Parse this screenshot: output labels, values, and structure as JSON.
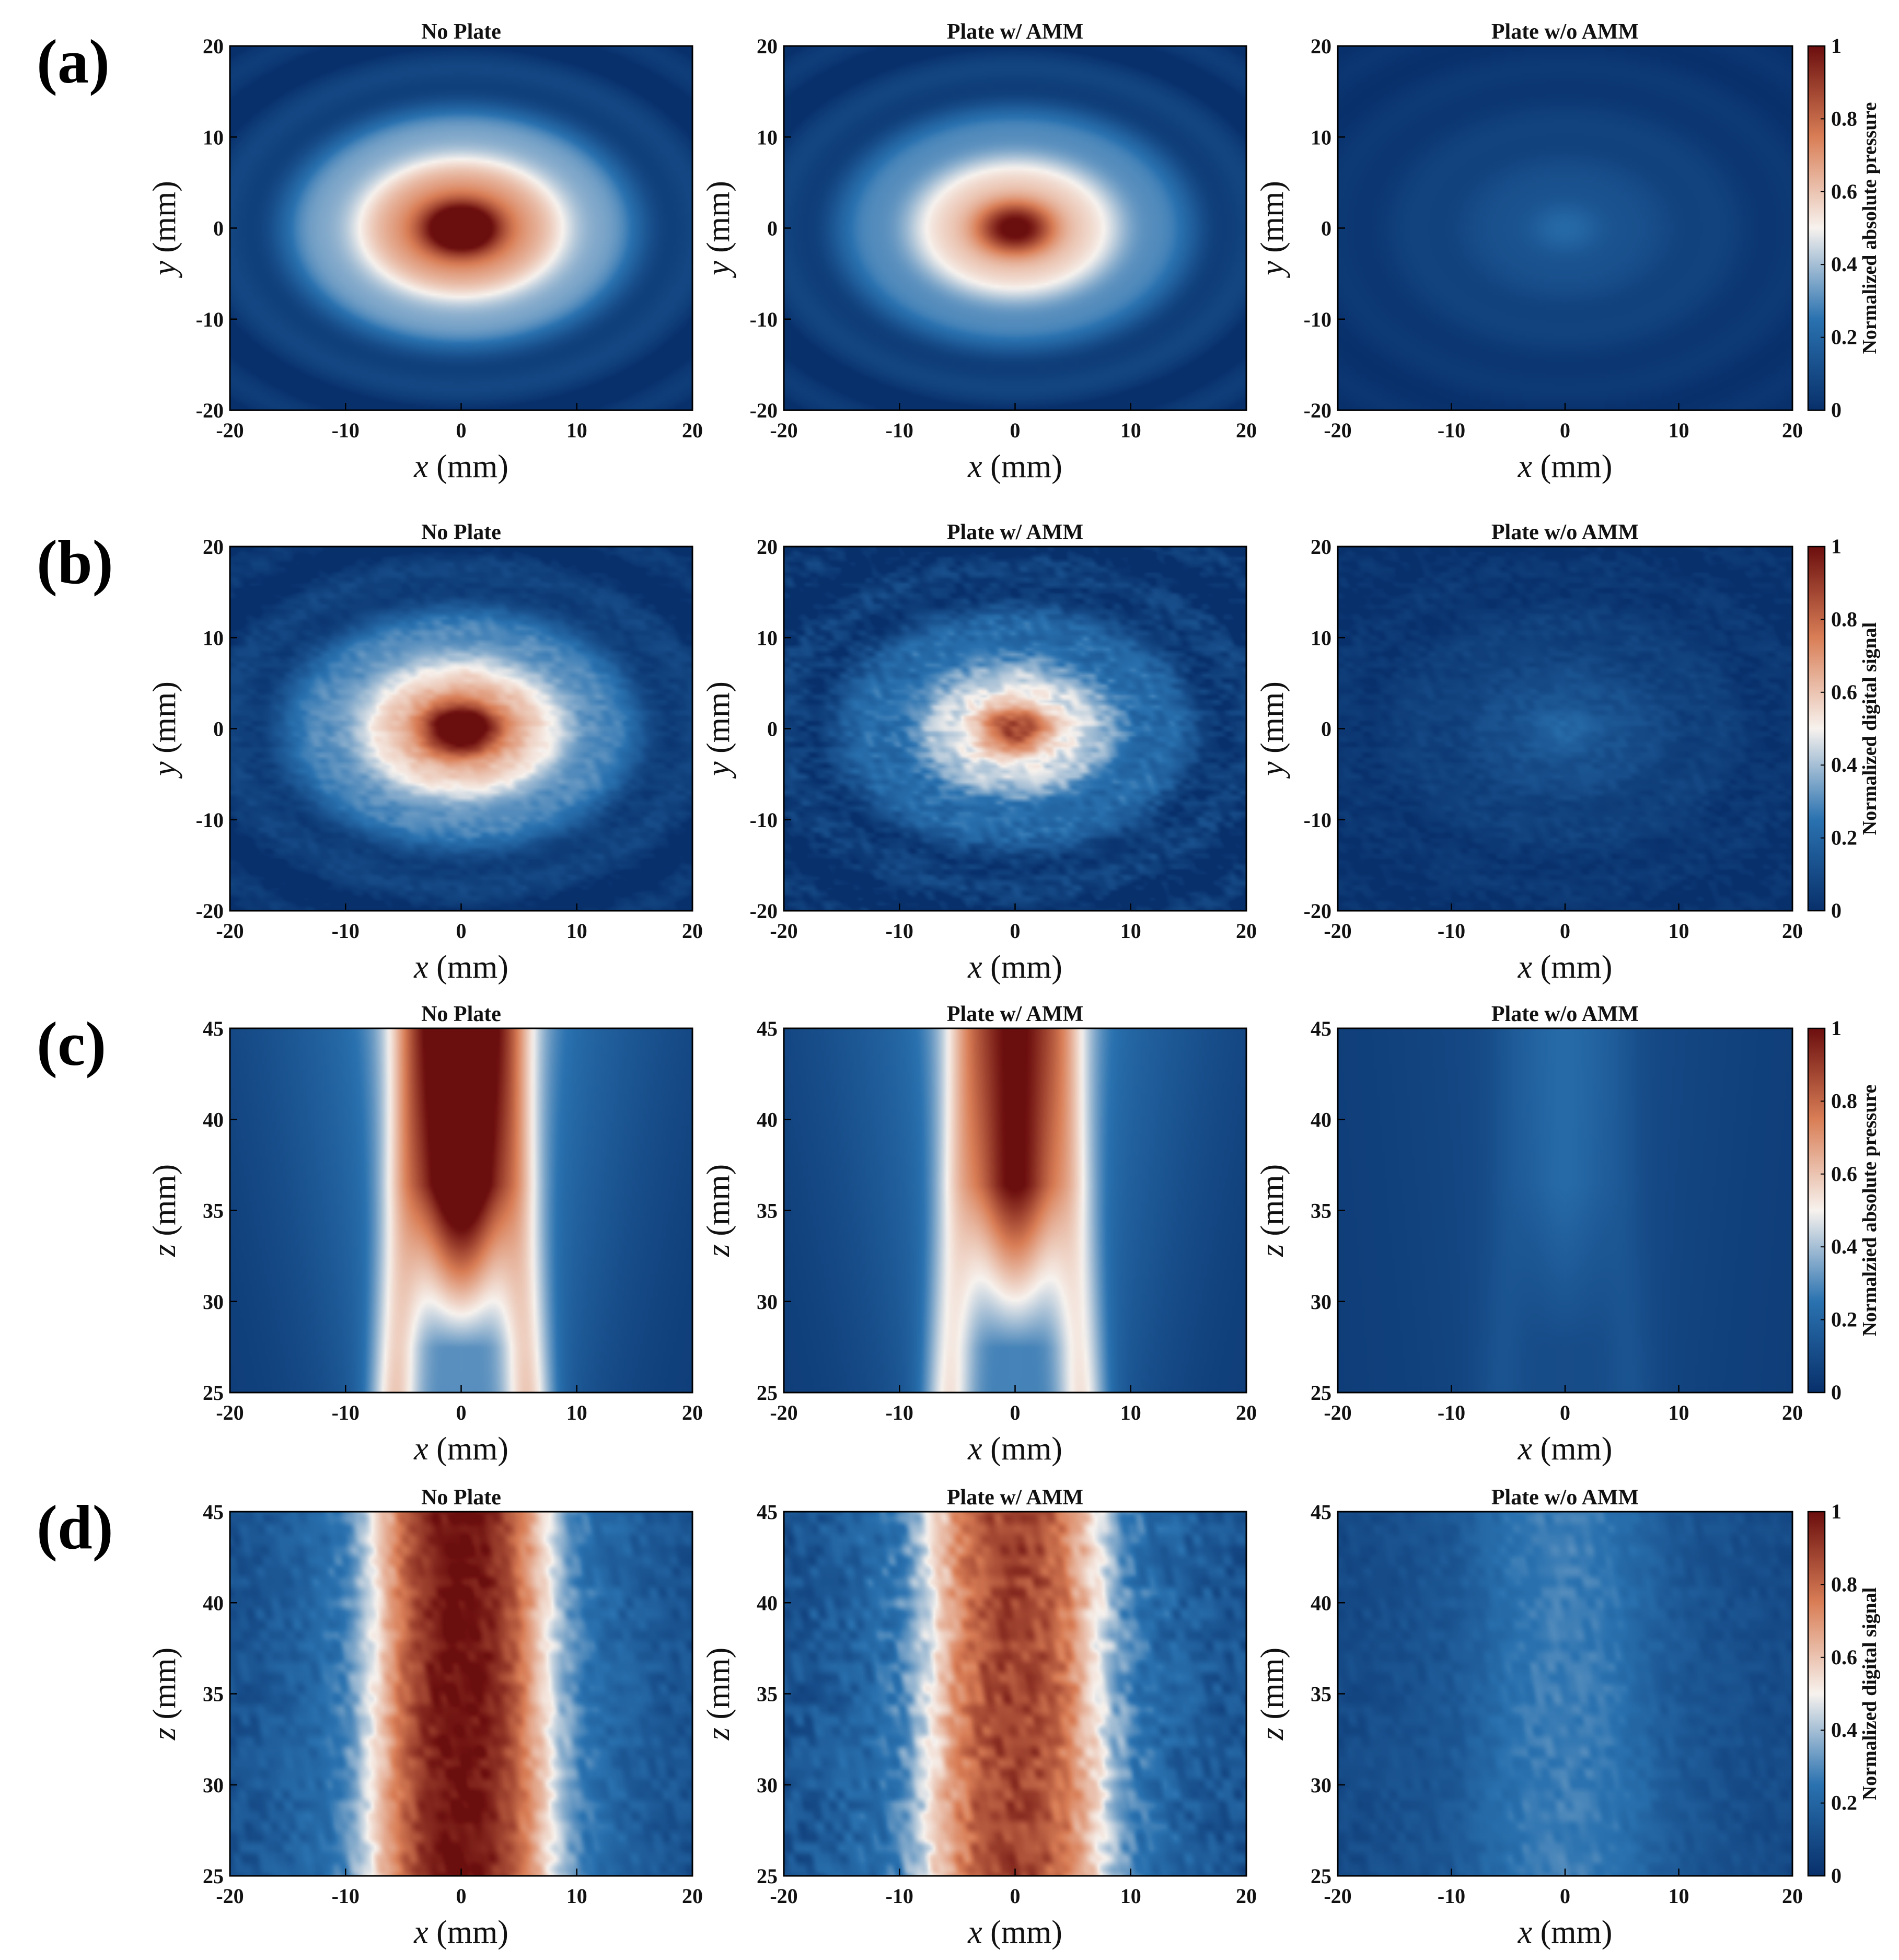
{
  "colors": {
    "low": "#08306b",
    "mid_low": "#2a72b0",
    "mid": "#f7f2ee",
    "mid_high": "#d97e56",
    "high": "#6b0e0e"
  },
  "colorbar_ticks": [
    "0",
    "0.2",
    "0.4",
    "0.6",
    "0.8",
    "1"
  ],
  "chart_data": [
    {
      "id": "a",
      "row_label": "(a)",
      "type": "heatmap",
      "colorbar_label": "Normalized absolute pressure",
      "panels": [
        {
          "title": "No Plate",
          "xlabel_var": "x",
          "xlabel_unit": "(mm)",
          "ylabel_var": "y",
          "ylabel_unit": "(mm)",
          "x_ticks": [
            "-20",
            "-10",
            "0",
            "10",
            "20"
          ],
          "y_ticks": [
            "20",
            "10",
            "0",
            "-10",
            "-20"
          ],
          "xlim": [
            -20,
            20
          ],
          "ylim": [
            -20,
            20
          ],
          "pattern": "xy",
          "peak": 1.0,
          "ring": 0.5,
          "noise": 0
        },
        {
          "title": "Plate w/ AMM",
          "xlabel_var": "x",
          "xlabel_unit": "(mm)",
          "ylabel_var": "y",
          "ylabel_unit": "(mm)",
          "x_ticks": [
            "-20",
            "-10",
            "0",
            "10",
            "20"
          ],
          "y_ticks": [
            "20",
            "10",
            "0",
            "-10",
            "-20"
          ],
          "xlim": [
            -20,
            20
          ],
          "ylim": [
            -20,
            20
          ],
          "pattern": "xy",
          "peak": 0.82,
          "ring": 0.42,
          "noise": 0
        },
        {
          "title": "Plate w/o AMM",
          "xlabel_var": "x",
          "xlabel_unit": "(mm)",
          "ylabel_var": "y",
          "ylabel_unit": "(mm)",
          "x_ticks": [
            "-20",
            "-10",
            "0",
            "10",
            "20"
          ],
          "y_ticks": [
            "20",
            "10",
            "0",
            "-10",
            "-20"
          ],
          "xlim": [
            -20,
            20
          ],
          "ylim": [
            -20,
            20
          ],
          "pattern": "xy",
          "peak": 0.14,
          "ring": 0.06,
          "noise": 0
        }
      ]
    },
    {
      "id": "b",
      "row_label": "(b)",
      "type": "heatmap",
      "colorbar_label": "Normalized digital signal",
      "panels": [
        {
          "title": "No Plate",
          "xlabel_var": "x",
          "xlabel_unit": "(mm)",
          "ylabel_var": "y",
          "ylabel_unit": "(mm)",
          "x_ticks": [
            "-20",
            "-10",
            "0",
            "10",
            "20"
          ],
          "y_ticks": [
            "20",
            "10",
            "0",
            "-10",
            "-20"
          ],
          "xlim": [
            -20,
            20
          ],
          "ylim": [
            -20,
            20
          ],
          "pattern": "xy",
          "peak": 0.95,
          "ring": 0.42,
          "noise": 0.03
        },
        {
          "title": "Plate w/ AMM",
          "xlabel_var": "x",
          "xlabel_unit": "(mm)",
          "ylabel_var": "y",
          "ylabel_unit": "(mm)",
          "x_ticks": [
            "-20",
            "-10",
            "0",
            "10",
            "20"
          ],
          "y_ticks": [
            "20",
            "10",
            "0",
            "-10",
            "-20"
          ],
          "xlim": [
            -20,
            20
          ],
          "ylim": [
            -20,
            20
          ],
          "pattern": "xy",
          "peak": 0.72,
          "ring": 0.3,
          "noise": 0.06
        },
        {
          "title": "Plate w/o AMM",
          "xlabel_var": "x",
          "xlabel_unit": "(mm)",
          "ylabel_var": "y",
          "ylabel_unit": "(mm)",
          "x_ticks": [
            "-20",
            "-10",
            "0",
            "10",
            "20"
          ],
          "y_ticks": [
            "20",
            "10",
            "0",
            "-10",
            "-20"
          ],
          "xlim": [
            -20,
            20
          ],
          "ylim": [
            -20,
            20
          ],
          "pattern": "xy",
          "peak": 0.14,
          "ring": 0.05,
          "noise": 0.03
        }
      ]
    },
    {
      "id": "c",
      "row_label": "(c)",
      "type": "heatmap",
      "colorbar_label": "Normalzied absolute pressure",
      "panels": [
        {
          "title": "No Plate",
          "xlabel_var": "x",
          "xlabel_unit": "(mm)",
          "ylabel_var": "z",
          "ylabel_unit": "(mm)",
          "x_ticks": [
            "-20",
            "-10",
            "0",
            "10",
            "20"
          ],
          "y_ticks": [
            "45",
            "40",
            "35",
            "30",
            "25"
          ],
          "xlim": [
            -20,
            20
          ],
          "ylim": [
            25,
            45
          ],
          "pattern": "xz",
          "peak": 1.0,
          "ring": 0.65,
          "noise": 0
        },
        {
          "title": "Plate w/ AMM",
          "xlabel_var": "x",
          "xlabel_unit": "(mm)",
          "ylabel_var": "z",
          "ylabel_unit": "(mm)",
          "x_ticks": [
            "-20",
            "-10",
            "0",
            "10",
            "20"
          ],
          "y_ticks": [
            "45",
            "40",
            "35",
            "30",
            "25"
          ],
          "xlim": [
            -20,
            20
          ],
          "ylim": [
            25,
            45
          ],
          "pattern": "xz",
          "peak": 0.78,
          "ring": 0.58,
          "noise": 0
        },
        {
          "title": "Plate w/o AMM",
          "xlabel_var": "x",
          "xlabel_unit": "(mm)",
          "ylabel_var": "z",
          "ylabel_unit": "(mm)",
          "x_ticks": [
            "-20",
            "-10",
            "0",
            "10",
            "20"
          ],
          "y_ticks": [
            "45",
            "40",
            "35",
            "30",
            "25"
          ],
          "xlim": [
            -20,
            20
          ],
          "ylim": [
            25,
            45
          ],
          "pattern": "xz",
          "peak": 0.12,
          "ring": 0.08,
          "noise": 0
        }
      ]
    },
    {
      "id": "d",
      "row_label": "(d)",
      "type": "heatmap",
      "colorbar_label": "Normalized digital signal",
      "panels": [
        {
          "title": "No Plate",
          "xlabel_var": "x",
          "xlabel_unit": "(mm)",
          "ylabel_var": "z",
          "ylabel_unit": "(mm)",
          "x_ticks": [
            "-20",
            "-10",
            "0",
            "10",
            "20"
          ],
          "y_ticks": [
            "45",
            "40",
            "35",
            "30",
            "25"
          ],
          "xlim": [
            -20,
            20
          ],
          "ylim": [
            25,
            45
          ],
          "pattern": "xzd",
          "peak": 0.92,
          "ring": 0.72,
          "noise": 0.05
        },
        {
          "title": "Plate w/ AMM",
          "xlabel_var": "x",
          "xlabel_unit": "(mm)",
          "ylabel_var": "z",
          "ylabel_unit": "(mm)",
          "x_ticks": [
            "-20",
            "-10",
            "0",
            "10",
            "20"
          ],
          "y_ticks": [
            "45",
            "40",
            "35",
            "30",
            "25"
          ],
          "xlim": [
            -20,
            20
          ],
          "ylim": [
            25,
            45
          ],
          "pattern": "xzd",
          "peak": 0.72,
          "ring": 0.62,
          "noise": 0.07
        },
        {
          "title": "Plate w/o AMM",
          "xlabel_var": "x",
          "xlabel_unit": "(mm)",
          "ylabel_var": "z",
          "ylabel_unit": "(mm)",
          "x_ticks": [
            "-20",
            "-10",
            "0",
            "10",
            "20"
          ],
          "y_ticks": [
            "45",
            "40",
            "35",
            "30",
            "25"
          ],
          "xlim": [
            -20,
            20
          ],
          "ylim": [
            25,
            45
          ],
          "pattern": "xzd",
          "peak": 0.14,
          "ring": 0.1,
          "noise": 0.03
        }
      ]
    }
  ]
}
